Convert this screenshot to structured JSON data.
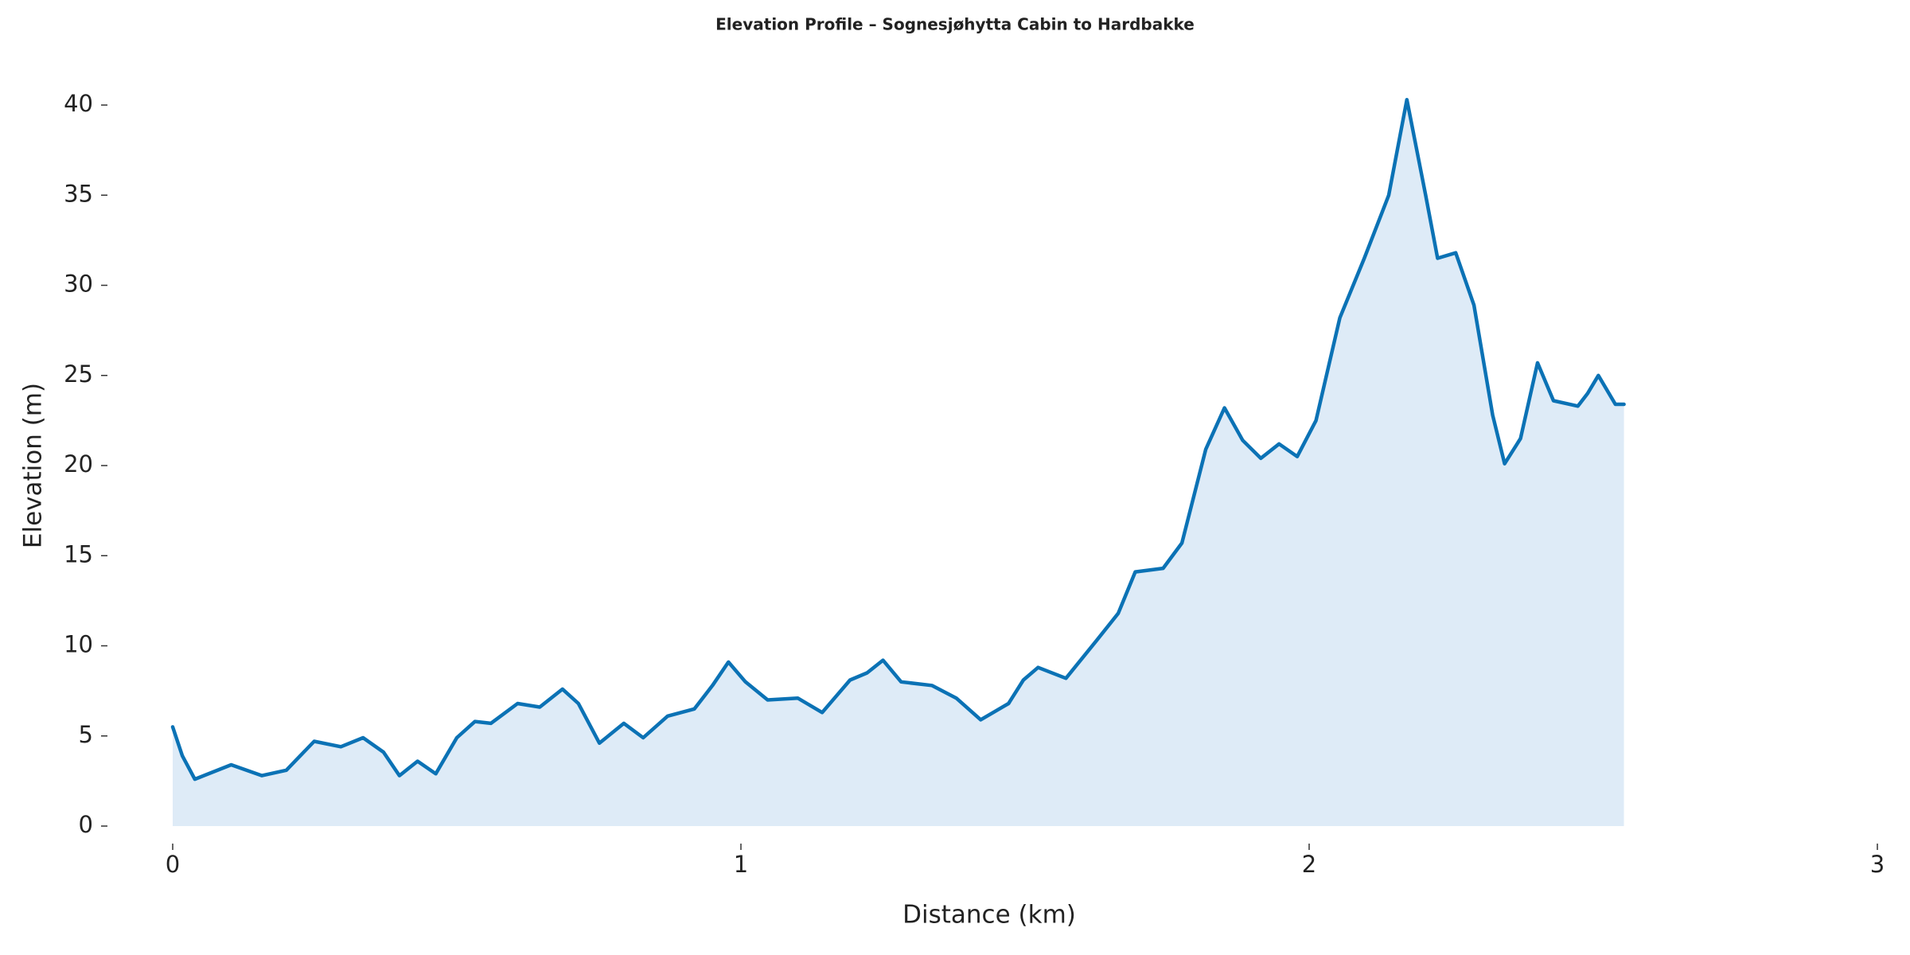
{
  "chart_data": {
    "type": "area",
    "title": "Elevation Profile – Sognesjøhytta Cabin to Hardbakke",
    "xlabel": "Distance (km)",
    "ylabel": "Elevation (m)",
    "x": [
      0,
      0.017,
      0.039,
      0.103,
      0.157,
      0.2,
      0.249,
      0.296,
      0.335,
      0.371,
      0.399,
      0.431,
      0.463,
      0.5,
      0.532,
      0.56,
      0.607,
      0.646,
      0.686,
      0.714,
      0.751,
      0.794,
      0.828,
      0.871,
      0.918,
      0.95,
      0.978,
      1.008,
      1.047,
      1.1,
      1.143,
      1.192,
      1.222,
      1.25,
      1.282,
      1.336,
      1.379,
      1.422,
      1.471,
      1.497,
      1.523,
      1.572,
      1.626,
      1.664,
      1.694,
      1.743,
      1.776,
      1.818,
      1.851,
      1.883,
      1.915,
      1.947,
      1.979,
      2.012,
      2.054,
      2.097,
      2.14,
      2.172,
      2.205,
      2.226,
      2.258,
      2.29,
      2.323,
      2.344,
      2.372,
      2.402,
      2.43,
      2.473,
      2.49,
      2.509,
      2.539,
      2.554
    ],
    "y": [
      5.5,
      3.9,
      2.6,
      3.4,
      2.8,
      3.1,
      4.7,
      4.4,
      4.9,
      4.1,
      2.8,
      3.6,
      2.9,
      4.9,
      5.8,
      5.7,
      6.8,
      6.6,
      7.6,
      6.8,
      4.6,
      5.7,
      4.9,
      6.1,
      6.5,
      7.8,
      9.1,
      8.0,
      7.0,
      7.1,
      6.3,
      8.1,
      8.5,
      9.2,
      8.0,
      7.8,
      7.1,
      5.9,
      6.8,
      8.1,
      8.8,
      8.2,
      10.3,
      11.8,
      14.1,
      14.3,
      15.7,
      20.9,
      23.2,
      21.4,
      20.4,
      21.2,
      20.5,
      22.5,
      28.2,
      31.5,
      35.0,
      40.3,
      35.0,
      31.5,
      31.8,
      28.9,
      22.8,
      20.1,
      21.5,
      25.7,
      23.6,
      23.3,
      24.0,
      25.0,
      23.4,
      23.4
    ],
    "color": "#0b72b5",
    "fill_color": "#deebf7",
    "xlim": [
      0,
      3
    ],
    "xticks": [
      0,
      1,
      2,
      3
    ],
    "ylim": [
      0,
      40
    ],
    "yticks": [
      0,
      5,
      10,
      15,
      20,
      25,
      30,
      35,
      40
    ]
  }
}
